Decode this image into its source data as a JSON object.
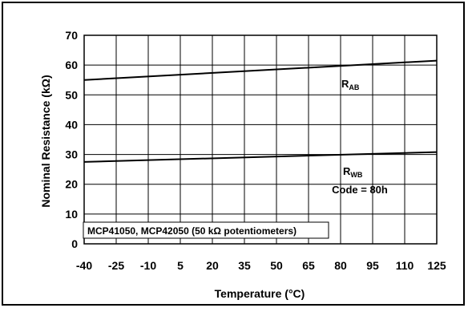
{
  "chart_data": {
    "type": "line",
    "xlabel": "Temperature (°C)",
    "ylabel": "Nominal Resistance (kΩ)",
    "x_ticks": [
      -40,
      -25,
      -10,
      5,
      20,
      35,
      50,
      65,
      80,
      95,
      110,
      125
    ],
    "y_ticks": [
      0,
      10,
      20,
      30,
      40,
      50,
      60,
      70
    ],
    "xlim": [
      -40,
      125
    ],
    "ylim": [
      0,
      70
    ],
    "grid": true,
    "series": [
      {
        "name": "RAB",
        "label_main": "R",
        "label_sub": "AB",
        "x": [
          -40,
          125
        ],
        "y": [
          55.0,
          61.5
        ]
      },
      {
        "name": "RWB",
        "label_main": "R",
        "label_sub": "WB",
        "x": [
          -40,
          125
        ],
        "y": [
          27.5,
          30.8
        ]
      }
    ],
    "annotations": {
      "code": "Code = 80h",
      "device": "MCP41050, MCP42050 (50 kΩ potentiometers)"
    }
  }
}
